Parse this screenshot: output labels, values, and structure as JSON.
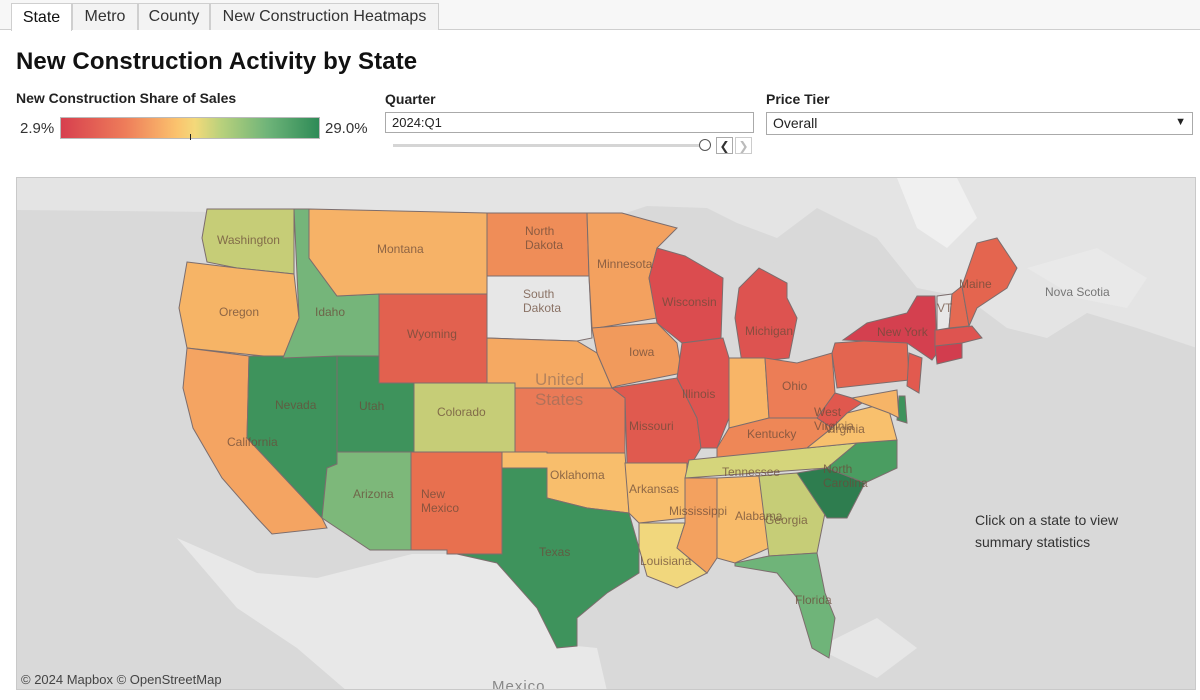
{
  "tabs": [
    {
      "label": "State",
      "active": true
    },
    {
      "label": "Metro",
      "active": false
    },
    {
      "label": "County",
      "active": false
    },
    {
      "label": "New Construction Heatmaps",
      "active": false
    }
  ],
  "title": "New Construction Activity by State",
  "legend": {
    "label": "New Construction Share of Sales",
    "min": "2.9%",
    "max": "29.0%"
  },
  "quarter": {
    "label": "Quarter",
    "value": "2024:Q1"
  },
  "price_tier": {
    "label": "Price Tier",
    "value": "Overall"
  },
  "map": {
    "instruction": "Click on a state to view summary statistics",
    "copyright": "© 2024 Mapbox  © OpenStreetMap",
    "country_labels": {
      "us_line1": "United",
      "us_line2": "States",
      "mexico": "Mexico",
      "nova_scotia": "Nova Scotia"
    },
    "states": [
      {
        "name": "Washington",
        "label": "Washington",
        "color": "#c6cd77"
      },
      {
        "name": "Oregon",
        "label": "Oregon",
        "color": "#f6b466"
      },
      {
        "name": "California",
        "label": "California",
        "color": "#f4a462"
      },
      {
        "name": "Nevada",
        "label": "Nevada",
        "color": "#3e935c"
      },
      {
        "name": "Idaho",
        "label": "Idaho",
        "color": "#75b57a"
      },
      {
        "name": "Montana",
        "label": "Montana",
        "color": "#f6b267"
      },
      {
        "name": "Wyoming",
        "label": "Wyoming",
        "color": "#e2614f"
      },
      {
        "name": "Utah",
        "label": "Utah",
        "color": "#3e935c"
      },
      {
        "name": "Arizona",
        "label": "Arizona",
        "color": "#7db87a"
      },
      {
        "name": "Colorado",
        "label": "Colorado",
        "color": "#c6cd77"
      },
      {
        "name": "New Mexico",
        "label": "New Mexico",
        "color": "#e8704f"
      },
      {
        "name": "North Dakota",
        "label": "North Dakota",
        "color": "#ef8d58"
      },
      {
        "name": "South Dakota",
        "label": "South Dakota",
        "color": "#e7e7e7"
      },
      {
        "name": "Nebraska",
        "label": "",
        "color": "#f5a962"
      },
      {
        "name": "Kansas",
        "label": "",
        "color": "#ea7a57"
      },
      {
        "name": "Oklahoma",
        "label": "Oklahoma",
        "color": "#f8be6c"
      },
      {
        "name": "Texas",
        "label": "Texas",
        "color": "#3e935c"
      },
      {
        "name": "Minnesota",
        "label": "Minnesota",
        "color": "#f3a15f"
      },
      {
        "name": "Iowa",
        "label": "Iowa",
        "color": "#f19a5c"
      },
      {
        "name": "Missouri",
        "label": "Missouri",
        "color": "#e05a4f"
      },
      {
        "name": "Arkansas",
        "label": "Arkansas",
        "color": "#f8be6c"
      },
      {
        "name": "Louisiana",
        "label": "Louisiana",
        "color": "#f1d77d"
      },
      {
        "name": "Wisconsin",
        "label": "Wisconsin",
        "color": "#db4c4f"
      },
      {
        "name": "Illinois",
        "label": "Illinois",
        "color": "#de5450"
      },
      {
        "name": "Michigan",
        "label": "Michigan",
        "color": "#dd5350"
      },
      {
        "name": "Indiana",
        "label": "",
        "color": "#f8b567"
      },
      {
        "name": "Ohio",
        "label": "Ohio",
        "color": "#ec7d56"
      },
      {
        "name": "Kentucky",
        "label": "Kentucky",
        "color": "#ee8757"
      },
      {
        "name": "Tennessee",
        "label": "Tennessee",
        "color": "#d5d57b"
      },
      {
        "name": "Mississippi",
        "label": "Mississippi",
        "color": "#f3a15f"
      },
      {
        "name": "Alabama",
        "label": "Alabama",
        "color": "#f8bb6a"
      },
      {
        "name": "Georgia",
        "label": "Georgia",
        "color": "#c6cd77"
      },
      {
        "name": "Florida",
        "label": "Florida",
        "color": "#6fb479"
      },
      {
        "name": "South Carolina",
        "label": "",
        "color": "#2e7d4f"
      },
      {
        "name": "North Carolina",
        "label": "North Carolina",
        "color": "#4a9d61"
      },
      {
        "name": "Virginia",
        "label": "Virginia",
        "color": "#f8c06d"
      },
      {
        "name": "West Virginia",
        "label": "West Virginia",
        "color": "#e0584e"
      },
      {
        "name": "Pennsylvania",
        "label": "",
        "color": "#e36550"
      },
      {
        "name": "New York",
        "label": "New York",
        "color": "#d4404f"
      },
      {
        "name": "New Jersey",
        "label": "",
        "color": "#e25a4f"
      },
      {
        "name": "Delaware",
        "label": "",
        "color": "#3e935c"
      },
      {
        "name": "Maryland",
        "label": "",
        "color": "#f6b467"
      },
      {
        "name": "Connecticut",
        "label": "",
        "color": "#d23d4e"
      },
      {
        "name": "Massachusetts",
        "label": "",
        "color": "#de5450"
      },
      {
        "name": "Vermont",
        "label": "VT",
        "color": "#e7e7e7"
      },
      {
        "name": "New Hampshire",
        "label": "",
        "color": "#e46a52"
      },
      {
        "name": "Maine",
        "label": "Maine",
        "color": "#e4654f"
      }
    ]
  }
}
